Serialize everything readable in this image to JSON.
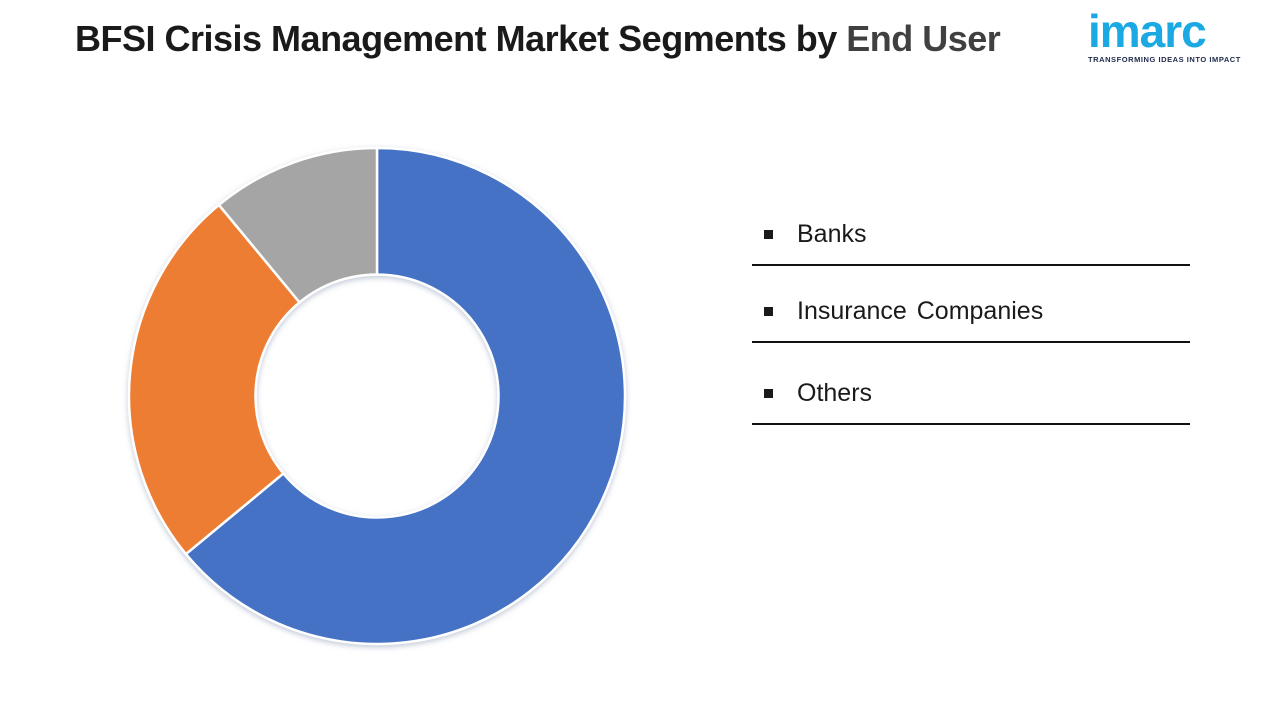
{
  "title": {
    "main": "BFSI Crisis Management Market Segments by ",
    "highlight": "End User"
  },
  "logo": {
    "text": "imarc",
    "tagline": "TRANSFORMING IDEAS INTO IMPACT",
    "text_color": "#1BA9E3",
    "tagline_color": "#1E2A4A"
  },
  "chart_data": {
    "type": "pie",
    "variant": "donut",
    "title": "BFSI Crisis Management Market Segments by End User",
    "categories": [
      "Banks",
      "Insurance Companies",
      "Others"
    ],
    "values": [
      64,
      25,
      11
    ],
    "colors": [
      "#4472C4",
      "#ED7D31",
      "#A5A5A5"
    ],
    "start_angle_deg": 0,
    "direction": "clockwise",
    "inner_radius_ratio": 0.49,
    "slice_border_color": "#ffffff",
    "data_labels": false,
    "legend_position": "right"
  },
  "legend": {
    "items": [
      {
        "label": "Banks"
      },
      {
        "label": "Insurance Companies"
      },
      {
        "label": "Others"
      }
    ]
  },
  "icons": {
    "legend_bullet": "black-square"
  }
}
